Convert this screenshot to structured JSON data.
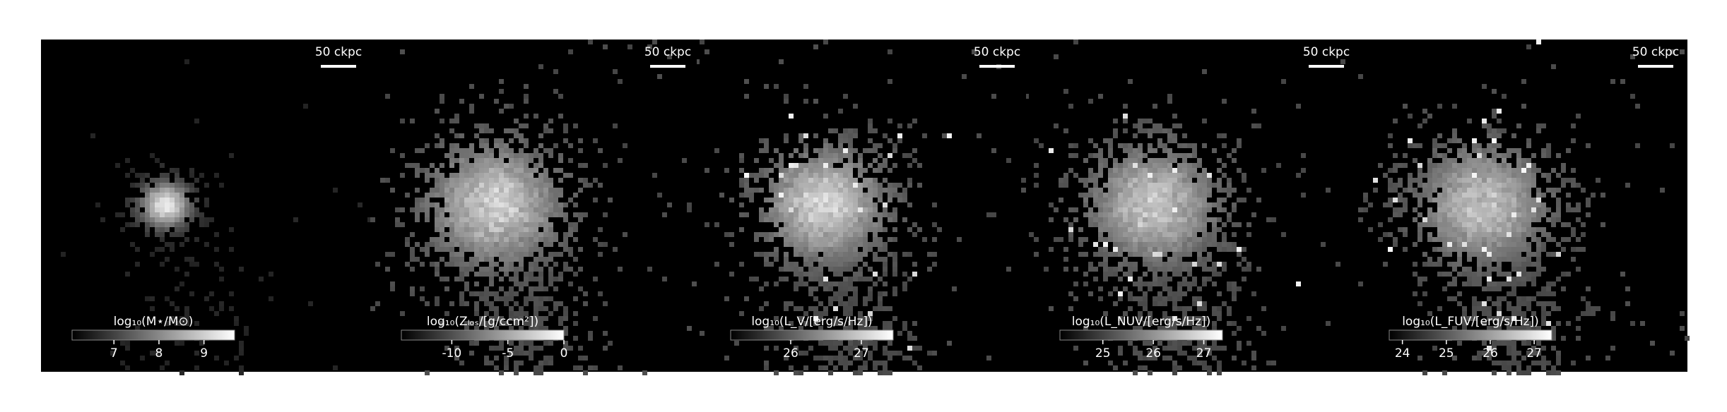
{
  "chart_data": [
    {
      "type": "image",
      "scale_label": "50 ckpc",
      "colorbar_label": "log₁₀(M⋆/M⊙)",
      "clim": [
        6.07,
        9.68
      ],
      "cticks": [
        7,
        8,
        9
      ]
    },
    {
      "type": "image",
      "scale_label": "50 ckpc",
      "colorbar_label": "log₁₀(Zₗₒₛ/[g/ccm²])",
      "clim": [
        -14.5,
        0
      ],
      "cticks": [
        -10,
        -5,
        0
      ]
    },
    {
      "type": "image",
      "scale_label": "50 ckpc",
      "colorbar_label": "log₁₀(L_V/[erg/s/Hz])",
      "clim": [
        25.15,
        27.45
      ],
      "cticks": [
        26,
        27
      ]
    },
    {
      "type": "image",
      "scale_label": "50 ckpc",
      "colorbar_label": "log₁₀(L_NUV/[erg/s/Hz])",
      "clim": [
        24.15,
        27.37
      ],
      "cticks": [
        25,
        26,
        27
      ]
    },
    {
      "type": "image",
      "scale_label": "50 ckpc",
      "colorbar_label": "log₁₀(L_FUV/[erg/s/Hz])",
      "clim": [
        23.7,
        27.4
      ],
      "cticks": [
        24,
        25,
        26,
        27
      ]
    }
  ]
}
